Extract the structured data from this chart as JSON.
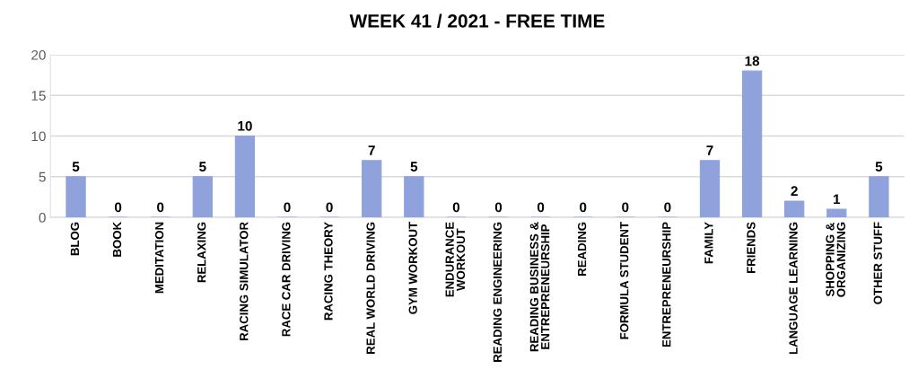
{
  "chart_data": {
    "type": "bar",
    "title": "WEEK 41 / 2021 - FREE TIME",
    "categories": [
      "BLOG",
      "BOOK",
      "MEDITATION",
      "RELAXING",
      "RACING SIMULATOR",
      "RACE CAR DRIVING",
      "RACING THEORY",
      "REAL WORLD DRIVING",
      "GYM WORKOUT",
      "ENDURANCE\nWORKOUT",
      "READING ENGINEERING",
      "READING BUSINESS &\nENTREPRENEURSHIP",
      "READING",
      "FORMULA STUDENT",
      "ENTREPRENEURSHIP",
      "FAMILY",
      "FRIENDS",
      "LANGUAGE LEARNING",
      "SHOPPING &\nORGANIZING",
      "OTHER STUFF"
    ],
    "values": [
      5,
      0,
      0,
      5,
      10,
      0,
      0,
      7,
      5,
      0,
      0,
      0,
      0,
      0,
      0,
      7,
      18,
      2,
      1,
      5
    ],
    "color": "#8fa2db",
    "ylim": [
      0,
      20
    ],
    "yticks": [
      0,
      5,
      10,
      15,
      20
    ],
    "grid": "y",
    "data_labels": true
  }
}
